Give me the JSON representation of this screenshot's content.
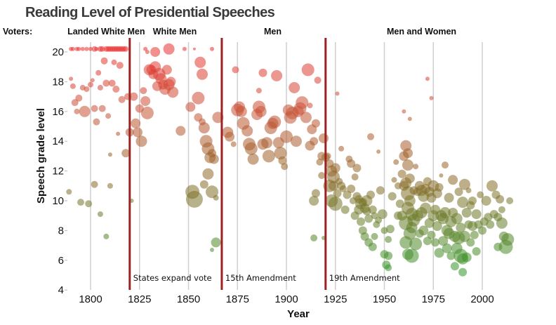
{
  "chart_data": {
    "type": "scatter",
    "title": "Reading Level of Presidential Speeches",
    "xlabel": "Year",
    "ylabel": "Speech grade level",
    "xlim": [
      1788,
      2019
    ],
    "ylim": [
      4,
      20.6
    ],
    "x_ticks": [
      1800,
      1825,
      1850,
      1875,
      1900,
      1925,
      1950,
      1975,
      2000
    ],
    "y_ticks": [
      4,
      6,
      8,
      10,
      12,
      14,
      16,
      18,
      20
    ],
    "grid": "vertical",
    "voters_label": "Voters:",
    "eras": [
      {
        "label": "Landed White Men",
        "center_year": 1808
      },
      {
        "label": "White Men",
        "center_year": 1843
      },
      {
        "label": "Men",
        "center_year": 1893
      },
      {
        "label": "Men and Women",
        "center_year": 1969
      }
    ],
    "events": [
      {
        "year": 1820,
        "label": "States expand vote"
      },
      {
        "year": 1867,
        "label": "15th Amendment"
      },
      {
        "year": 1920,
        "label": "19th Amendment"
      }
    ],
    "color_scale": {
      "high": "#e83030",
      "mid": "#a0622a",
      "low_mid": "#6e7a28",
      "low": "#2f9a2a"
    },
    "event_line_color": "#9b2222",
    "point_fields": [
      "year",
      "grade",
      "weight"
    ],
    "points": [
      [
        1790,
        20.2,
        3
      ],
      [
        1791,
        20.2,
        3
      ],
      [
        1793,
        20.2,
        3
      ],
      [
        1794,
        20.2,
        3
      ],
      [
        1796,
        20.2,
        3
      ],
      [
        1798,
        20.2,
        3
      ],
      [
        1800,
        20.2,
        3
      ],
      [
        1802,
        20.2,
        4
      ],
      [
        1803,
        20.2,
        3
      ],
      [
        1805,
        20.2,
        4
      ],
      [
        1806,
        20.2,
        4
      ],
      [
        1808,
        20.2,
        4
      ],
      [
        1809,
        20.2,
        4
      ],
      [
        1810,
        20.2,
        4
      ],
      [
        1811,
        20.2,
        4
      ],
      [
        1812,
        20.2,
        4
      ],
      [
        1813,
        20.2,
        4
      ],
      [
        1814,
        20.2,
        4
      ],
      [
        1815,
        20.2,
        4
      ],
      [
        1816,
        20.2,
        4
      ],
      [
        1817,
        20.2,
        4
      ],
      [
        1818,
        20.2,
        4
      ],
      [
        1789,
        10.6,
        4
      ],
      [
        1790,
        18.2,
        3
      ],
      [
        1791,
        17.7,
        4
      ],
      [
        1792,
        16.6,
        5
      ],
      [
        1793,
        16.0,
        4
      ],
      [
        1794,
        16.9,
        5
      ],
      [
        1795,
        9.9,
        5
      ],
      [
        1796,
        17.6,
        4
      ],
      [
        1797,
        16.0,
        8
      ],
      [
        1798,
        17.5,
        4
      ],
      [
        1799,
        9.8,
        5
      ],
      [
        1800,
        17.8,
        4
      ],
      [
        1801,
        18.1,
        3
      ],
      [
        1802,
        16.2,
        5
      ],
      [
        1802,
        11.1,
        5
      ],
      [
        1803,
        15.3,
        5
      ],
      [
        1804,
        18.6,
        4
      ],
      [
        1805,
        17.6,
        4
      ],
      [
        1805,
        9.1,
        4
      ],
      [
        1806,
        16.2,
        5
      ],
      [
        1807,
        19.4,
        5
      ],
      [
        1808,
        17.9,
        5
      ],
      [
        1808,
        7.6,
        4
      ],
      [
        1809,
        15.7,
        4
      ],
      [
        1810,
        13.1,
        3
      ],
      [
        1810,
        11.0,
        4
      ],
      [
        1811,
        17.9,
        5
      ],
      [
        1812,
        19.3,
        4
      ],
      [
        1813,
        17.5,
        5
      ],
      [
        1814,
        14.5,
        3
      ],
      [
        1815,
        19.1,
        5
      ],
      [
        1816,
        16.8,
        5
      ],
      [
        1818,
        13.2,
        6
      ],
      [
        1819,
        17.0,
        5
      ],
      [
        1820,
        14.6,
        6
      ],
      [
        1821,
        10.0,
        3
      ],
      [
        1822,
        17.0,
        6
      ],
      [
        1823,
        15.2,
        7
      ],
      [
        1824,
        14.6,
        7
      ],
      [
        1825,
        16.2,
        6
      ],
      [
        1826,
        14.0,
        8
      ],
      [
        1827,
        17.4,
        5
      ],
      [
        1828,
        16.7,
        7
      ],
      [
        1829,
        15.9,
        9
      ],
      [
        1830,
        18.8,
        8
      ],
      [
        1831,
        18.8,
        7
      ],
      [
        1832,
        18.5,
        7
      ],
      [
        1833,
        19.0,
        8
      ],
      [
        1834,
        17.7,
        7
      ],
      [
        1835,
        18.5,
        9
      ],
      [
        1836,
        18.2,
        8
      ],
      [
        1837,
        17.8,
        7
      ],
      [
        1838,
        17.5,
        8
      ],
      [
        1839,
        18.8,
        7
      ],
      [
        1840,
        17.8,
        8
      ],
      [
        1841,
        18.0,
        7
      ],
      [
        1842,
        17.3,
        8
      ],
      [
        1833,
        20.0,
        7
      ],
      [
        1840,
        20.2,
        8
      ],
      [
        1828,
        20.2,
        3
      ],
      [
        1829,
        20.0,
        3
      ],
      [
        1846,
        14.7,
        7
      ],
      [
        1848,
        20.2,
        3
      ],
      [
        1851,
        16.3,
        7
      ],
      [
        1853,
        20.2,
        2
      ],
      [
        1855,
        16.9,
        9
      ],
      [
        1852,
        10.6,
        10
      ],
      [
        1853,
        10.1,
        12
      ],
      [
        1855,
        15.6,
        6
      ],
      [
        1856,
        19.3,
        8
      ],
      [
        1857,
        18.5,
        8
      ],
      [
        1857,
        15.3,
        5
      ],
      [
        1858,
        14.9,
        8
      ],
      [
        1859,
        14.0,
        9
      ],
      [
        1860,
        13.5,
        9
      ],
      [
        1860,
        11.8,
        8
      ],
      [
        1861,
        12.9,
        8
      ],
      [
        1862,
        13.2,
        6
      ],
      [
        1862,
        10.6,
        9
      ],
      [
        1863,
        12.8,
        7
      ],
      [
        1864,
        10.2,
        4
      ],
      [
        1862,
        20.2,
        3
      ],
      [
        1865,
        15.6,
        8
      ],
      [
        1864,
        7.2,
        7
      ],
      [
        1862,
        6.7,
        3
      ],
      [
        1858,
        11.1,
        6
      ],
      [
        1870,
        14.6,
        8
      ],
      [
        1871,
        14.3,
        7
      ],
      [
        1873,
        13.8,
        4
      ],
      [
        1874,
        18.8,
        5
      ],
      [
        1875,
        16.1,
        9
      ],
      [
        1876,
        16.3,
        8
      ],
      [
        1877,
        16.0,
        8
      ],
      [
        1878,
        15.2,
        9
      ],
      [
        1880,
        14.7,
        8
      ],
      [
        1881,
        13.8,
        9
      ],
      [
        1882,
        13.5,
        9
      ],
      [
        1883,
        12.8,
        8
      ],
      [
        1885,
        15.8,
        8
      ],
      [
        1886,
        17.4,
        4
      ],
      [
        1886,
        16.3,
        9
      ],
      [
        1887,
        16.0,
        8
      ],
      [
        1888,
        18.6,
        6
      ],
      [
        1888,
        13.8,
        8
      ],
      [
        1890,
        13.9,
        8
      ],
      [
        1891,
        13.0,
        9
      ],
      [
        1892,
        14.9,
        9
      ],
      [
        1893,
        15.2,
        8
      ],
      [
        1894,
        15.3,
        9
      ],
      [
        1895,
        18.4,
        8
      ],
      [
        1896,
        13.9,
        8
      ],
      [
        1897,
        13.2,
        9
      ],
      [
        1898,
        12.7,
        6
      ],
      [
        1899,
        12.3,
        5
      ],
      [
        1900,
        14.3,
        9
      ],
      [
        1901,
        16.1,
        8
      ],
      [
        1902,
        15.6,
        9
      ],
      [
        1903,
        15.9,
        9
      ],
      [
        1904,
        17.6,
        8
      ],
      [
        1905,
        14.0,
        8
      ],
      [
        1906,
        16.0,
        8
      ],
      [
        1907,
        16.2,
        9
      ],
      [
        1908,
        16.6,
        9
      ],
      [
        1910,
        15.6,
        8
      ],
      [
        1911,
        18.8,
        9
      ],
      [
        1912,
        16.4,
        4
      ],
      [
        1912,
        13.7,
        7
      ],
      [
        1913,
        14.8,
        7
      ],
      [
        1914,
        14.0,
        6
      ],
      [
        1915,
        15.2,
        6
      ],
      [
        1915,
        10.5,
        6
      ],
      [
        1914,
        10.0,
        7
      ],
      [
        1914,
        7.5,
        5
      ],
      [
        1916,
        18.1,
        5
      ],
      [
        1917,
        12.6,
        5
      ],
      [
        1918,
        13.0,
        6
      ],
      [
        1919,
        14.2,
        7
      ],
      [
        1920,
        12.9,
        6
      ],
      [
        1918,
        11.7,
        5
      ],
      [
        1921,
        13.0,
        5
      ],
      [
        1922,
        12.5,
        6
      ],
      [
        1922,
        11.0,
        9
      ],
      [
        1923,
        12.0,
        8
      ],
      [
        1923,
        10.0,
        9
      ],
      [
        1924,
        11.6,
        9
      ],
      [
        1924,
        11.0,
        7
      ],
      [
        1925,
        12.2,
        7
      ],
      [
        1925,
        9.8,
        10
      ],
      [
        1926,
        10.5,
        6
      ],
      [
        1927,
        11.3,
        5
      ],
      [
        1928,
        13.5,
        4
      ],
      [
        1928,
        11.0,
        6
      ],
      [
        1929,
        10.8,
        5
      ],
      [
        1930,
        9.4,
        6
      ],
      [
        1926,
        17.2,
        3
      ],
      [
        1919,
        7.5,
        3
      ],
      [
        1931,
        10.4,
        6
      ],
      [
        1932,
        12.8,
        5
      ],
      [
        1933,
        12.5,
        6
      ],
      [
        1933,
        10.8,
        6
      ],
      [
        1934,
        10.0,
        5
      ],
      [
        1935,
        9.0,
        6
      ],
      [
        1935,
        11.6,
        5
      ],
      [
        1936,
        12.2,
        6
      ],
      [
        1936,
        10.3,
        6
      ],
      [
        1937,
        9.4,
        7
      ],
      [
        1937,
        10.1,
        6
      ],
      [
        1938,
        9.8,
        8
      ],
      [
        1938,
        8.6,
        6
      ],
      [
        1939,
        9.9,
        6
      ],
      [
        1939,
        8.0,
        6
      ],
      [
        1940,
        9.5,
        7
      ],
      [
        1940,
        7.6,
        6
      ],
      [
        1941,
        10.0,
        8
      ],
      [
        1941,
        9.3,
        6
      ],
      [
        1942,
        8.8,
        6
      ],
      [
        1942,
        7.2,
        6
      ],
      [
        1943,
        10.4,
        6
      ],
      [
        1943,
        14.3,
        5
      ],
      [
        1944,
        9.4,
        6
      ],
      [
        1944,
        6.9,
        6
      ],
      [
        1945,
        9.0,
        5
      ],
      [
        1945,
        7.6,
        5
      ],
      [
        1946,
        8.4,
        5
      ],
      [
        1947,
        8.7,
        5
      ],
      [
        1947,
        13.3,
        3
      ],
      [
        1948,
        10.7,
        6
      ],
      [
        1949,
        9.1,
        7
      ],
      [
        1950,
        6.4,
        6
      ],
      [
        1950,
        8.0,
        5
      ],
      [
        1951,
        5.7,
        6
      ],
      [
        1952,
        6.3,
        6
      ],
      [
        1952,
        5.5,
        5
      ],
      [
        1952,
        7.4,
        5
      ],
      [
        1953,
        8.1,
        6
      ],
      [
        1954,
        10.3,
        6
      ],
      [
        1955,
        11.4,
        4
      ],
      [
        1956,
        12.6,
        4
      ],
      [
        1957,
        11.0,
        5
      ],
      [
        1957,
        9.0,
        6
      ],
      [
        1958,
        9.8,
        6
      ],
      [
        1959,
        11.8,
        6
      ],
      [
        1959,
        9.0,
        7
      ],
      [
        1960,
        11.0,
        7
      ],
      [
        1960,
        13.0,
        7
      ],
      [
        1960,
        16.0,
        3
      ],
      [
        1961,
        13.7,
        8
      ],
      [
        1961,
        11.2,
        8
      ],
      [
        1961,
        8.5,
        10
      ],
      [
        1961,
        7.2,
        9
      ],
      [
        1962,
        13.2,
        7
      ],
      [
        1962,
        12.4,
        8
      ],
      [
        1962,
        10.5,
        10
      ],
      [
        1962,
        9.5,
        9
      ],
      [
        1962,
        6.4,
        8
      ],
      [
        1963,
        15.5,
        3
      ],
      [
        1963,
        10.0,
        8
      ],
      [
        1963,
        7.8,
        9
      ],
      [
        1963,
        11.5,
        7
      ],
      [
        1964,
        9.1,
        9
      ],
      [
        1964,
        6.3,
        10
      ],
      [
        1964,
        8.2,
        8
      ],
      [
        1965,
        10.7,
        6
      ],
      [
        1965,
        8.7,
        9
      ],
      [
        1966,
        12.3,
        4
      ],
      [
        1966,
        7.1,
        9
      ],
      [
        1967,
        10.6,
        6
      ],
      [
        1967,
        9.0,
        8
      ],
      [
        1968,
        7.8,
        6
      ],
      [
        1968,
        11.0,
        7
      ],
      [
        1969,
        10.7,
        8
      ],
      [
        1969,
        9.2,
        8
      ],
      [
        1970,
        10.3,
        8
      ],
      [
        1970,
        8.0,
        7
      ],
      [
        1971,
        10.8,
        7
      ],
      [
        1971,
        9.5,
        8
      ],
      [
        1972,
        11.3,
        6
      ],
      [
        1972,
        7.3,
        6
      ],
      [
        1972,
        18.2,
        3
      ],
      [
        1973,
        10.6,
        7
      ],
      [
        1973,
        8.5,
        7
      ],
      [
        1974,
        16.9,
        3
      ],
      [
        1974,
        10.2,
        7
      ],
      [
        1974,
        7.7,
        6
      ],
      [
        1975,
        9.0,
        8
      ],
      [
        1975,
        11.0,
        8
      ],
      [
        1976,
        7.2,
        6
      ],
      [
        1976,
        9.4,
        7
      ],
      [
        1977,
        10.5,
        7
      ],
      [
        1977,
        8.3,
        7
      ],
      [
        1978,
        10.9,
        6
      ],
      [
        1978,
        6.5,
        7
      ],
      [
        1979,
        9.0,
        8
      ],
      [
        1979,
        11.7,
        3
      ],
      [
        1980,
        8.8,
        8
      ],
      [
        1980,
        7.3,
        7
      ],
      [
        1981,
        12.4,
        5
      ],
      [
        1981,
        9.2,
        8
      ],
      [
        1982,
        8.0,
        8
      ],
      [
        1982,
        6.8,
        7
      ],
      [
        1983,
        10.2,
        7
      ],
      [
        1983,
        7.8,
        8
      ],
      [
        1984,
        8.6,
        8
      ],
      [
        1984,
        6.3,
        6
      ],
      [
        1985,
        11.4,
        7
      ],
      [
        1985,
        9.2,
        7
      ],
      [
        1986,
        7.6,
        8
      ],
      [
        1986,
        5.6,
        6
      ],
      [
        1987,
        8.8,
        8
      ],
      [
        1987,
        6.8,
        8
      ],
      [
        1988,
        10.6,
        6
      ],
      [
        1988,
        7.5,
        9
      ],
      [
        1989,
        6.3,
        10
      ],
      [
        1989,
        8.2,
        7
      ],
      [
        1990,
        9.9,
        8
      ],
      [
        1990,
        6.1,
        8
      ],
      [
        1990,
        5.2,
        6
      ],
      [
        1991,
        7.6,
        8
      ],
      [
        1991,
        11.1,
        8
      ],
      [
        1992,
        9.2,
        7
      ],
      [
        1992,
        6.2,
        7
      ],
      [
        1993,
        8.4,
        6
      ],
      [
        1993,
        10.7,
        4
      ],
      [
        1994,
        7.2,
        6
      ],
      [
        1994,
        9.7,
        6
      ],
      [
        1995,
        8.3,
        7
      ],
      [
        1995,
        10.0,
        6
      ],
      [
        1996,
        7.7,
        6
      ],
      [
        1997,
        9.1,
        7
      ],
      [
        1997,
        6.6,
        6
      ],
      [
        1998,
        8.4,
        6
      ],
      [
        1999,
        10.4,
        5
      ],
      [
        2000,
        8.0,
        6
      ],
      [
        2001,
        8.6,
        6
      ],
      [
        2002,
        10.0,
        7
      ],
      [
        2003,
        8.9,
        6
      ],
      [
        2004,
        8.4,
        6
      ],
      [
        2005,
        11.0,
        8
      ],
      [
        2006,
        9.1,
        6
      ],
      [
        2007,
        10.4,
        6
      ],
      [
        2008,
        8.9,
        6
      ],
      [
        2009,
        10.1,
        6
      ],
      [
        2010,
        9.4,
        5
      ],
      [
        2010,
        8.5,
        8
      ],
      [
        2011,
        7.6,
        7
      ],
      [
        2012,
        6.9,
        10
      ],
      [
        2013,
        7.4,
        9
      ],
      [
        2014,
        10.0,
        5
      ],
      [
        2008,
        6.9,
        6
      ]
    ]
  }
}
